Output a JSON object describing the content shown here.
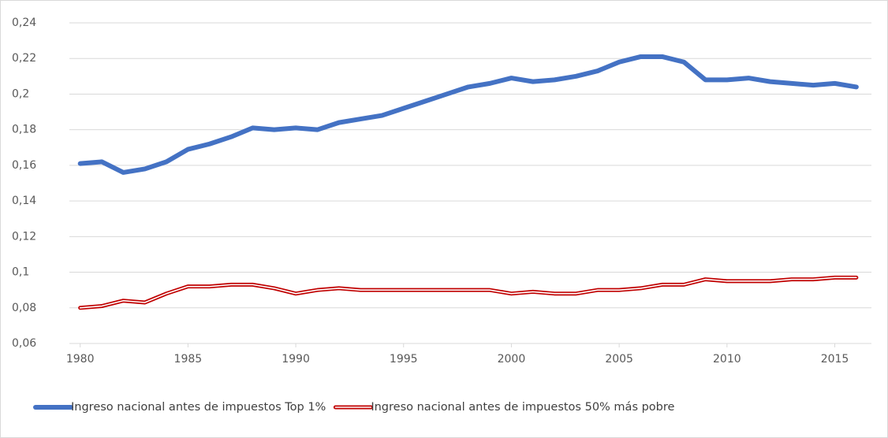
{
  "chart_data": {
    "type": "line",
    "x": [
      1980,
      1981,
      1982,
      1983,
      1984,
      1985,
      1986,
      1987,
      1988,
      1989,
      1990,
      1991,
      1992,
      1993,
      1994,
      1995,
      1996,
      1997,
      1998,
      1999,
      2000,
      2001,
      2002,
      2003,
      2004,
      2005,
      2006,
      2007,
      2008,
      2009,
      2010,
      2011,
      2012,
      2013,
      2014,
      2015,
      2016
    ],
    "series": [
      {
        "name": "Ingreso nacional antes de impuestos Top 1%",
        "color": "#4472c4",
        "style": "solid",
        "values": [
          0.161,
          0.162,
          0.156,
          0.158,
          0.162,
          0.169,
          0.172,
          0.176,
          0.181,
          0.18,
          0.181,
          0.18,
          0.184,
          0.186,
          0.188,
          0.192,
          0.196,
          0.2,
          0.204,
          0.206,
          0.209,
          0.207,
          0.208,
          0.21,
          0.213,
          0.218,
          0.221,
          0.221,
          0.218,
          0.208,
          0.208,
          0.209,
          0.207,
          0.206,
          0.205,
          0.206,
          0.204
        ]
      },
      {
        "name": "Ingreso nacional antes de impuestos 50% más pobre",
        "color": "#c00000",
        "style": "double",
        "values": [
          0.08,
          0.081,
          0.084,
          0.083,
          0.088,
          0.092,
          0.092,
          0.093,
          0.093,
          0.091,
          0.088,
          0.09,
          0.091,
          0.09,
          0.09,
          0.09,
          0.09,
          0.09,
          0.09,
          0.09,
          0.088,
          0.089,
          0.088,
          0.088,
          0.09,
          0.09,
          0.091,
          0.093,
          0.093,
          0.096,
          0.095,
          0.095,
          0.095,
          0.096,
          0.096,
          0.097,
          0.097
        ]
      }
    ],
    "xlim": [
      1979.5,
      2016.7
    ],
    "xticks": [
      1980,
      1985,
      1990,
      1995,
      2000,
      2005,
      2010,
      2015
    ],
    "ylim": [
      0.06,
      0.24
    ],
    "yticks": [
      {
        "value": 0.06,
        "label": "0,06"
      },
      {
        "value": 0.08,
        "label": "0,08"
      },
      {
        "value": 0.1,
        "label": "0,1"
      },
      {
        "value": 0.12,
        "label": "0,12"
      },
      {
        "value": 0.14,
        "label": "0,14"
      },
      {
        "value": 0.16,
        "label": "0,16"
      },
      {
        "value": 0.18,
        "label": "0,18"
      },
      {
        "value": 0.2,
        "label": "0,2"
      },
      {
        "value": 0.22,
        "label": "0,22"
      },
      {
        "value": 0.24,
        "label": "0,24"
      }
    ],
    "grid": true,
    "legend": "bottom"
  }
}
